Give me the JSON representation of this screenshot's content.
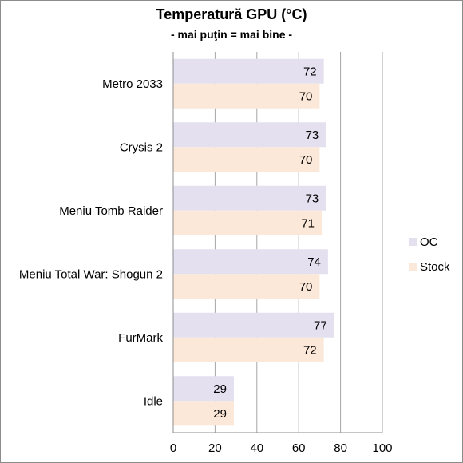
{
  "chart_data": {
    "type": "bar",
    "orientation": "horizontal",
    "title": "Temperatură GPU (°C)",
    "subtitle": "- mai puţin = mai bine -",
    "categories": [
      "Metro 2033",
      "Crysis 2",
      "Meniu Tomb Raider",
      "Meniu Total War: Shogun 2",
      "FurMark",
      "Idle"
    ],
    "series": [
      {
        "name": "OC",
        "values": [
          72,
          73,
          73,
          74,
          77,
          29
        ],
        "color": "#e4e0ef"
      },
      {
        "name": "Stock",
        "values": [
          70,
          70,
          71,
          70,
          72,
          29
        ],
        "color": "#fce8d8"
      }
    ],
    "xlim": [
      0,
      100
    ],
    "xticks": [
      "0",
      "20",
      "40",
      "60",
      "80",
      "100"
    ],
    "grid": "vertical",
    "legend": "right"
  }
}
